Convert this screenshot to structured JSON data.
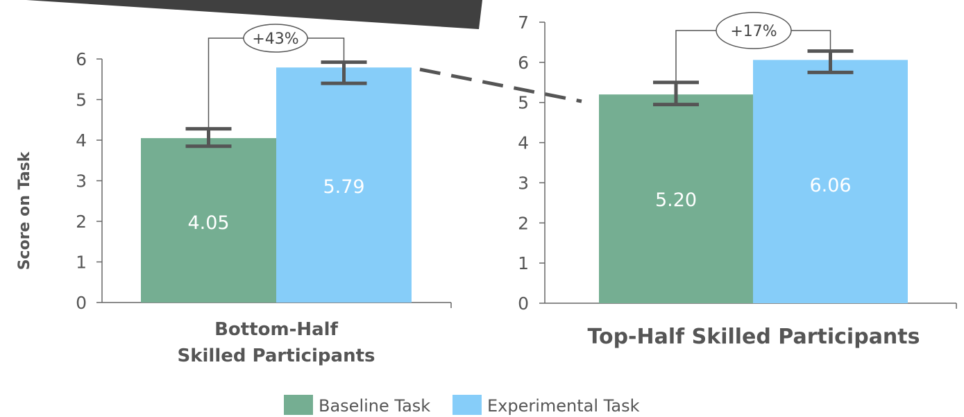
{
  "colors": {
    "baseline": "#75ae92",
    "experimental": "#86cdf9",
    "error_bar": "#555555",
    "arrow": "#404040",
    "dashed_line": "#555555"
  },
  "legend": {
    "baseline_label": "Baseline Task",
    "experimental_label": "Experimental Task"
  },
  "chart_data": [
    {
      "type": "bar",
      "category_lines": [
        "Bottom-Half",
        "Skilled Participants"
      ],
      "ylabel": "Score on Task",
      "ylim": [
        0,
        6
      ],
      "yticks": [
        0,
        1,
        2,
        3,
        4,
        5,
        6
      ],
      "series": [
        {
          "name": "Baseline Task",
          "value": 4.05,
          "label": "4.05",
          "error": [
            3.85,
            4.28
          ]
        },
        {
          "name": "Experimental Task",
          "value": 5.79,
          "label": "5.79",
          "error": [
            5.4,
            5.92
          ]
        }
      ],
      "annotation": "+43%"
    },
    {
      "type": "bar",
      "category_lines": [
        "Top-Half Skilled Participants"
      ],
      "ylabel": "",
      "ylim": [
        0,
        7
      ],
      "yticks": [
        0,
        1,
        2,
        3,
        4,
        5,
        6,
        7
      ],
      "series": [
        {
          "name": "Baseline Task",
          "value": 5.2,
          "label": "5.20",
          "error": [
            4.95,
            5.5
          ]
        },
        {
          "name": "Experimental Task",
          "value": 6.06,
          "label": "6.06",
          "error": [
            5.75,
            6.28
          ]
        }
      ],
      "annotation": "+17%"
    }
  ]
}
